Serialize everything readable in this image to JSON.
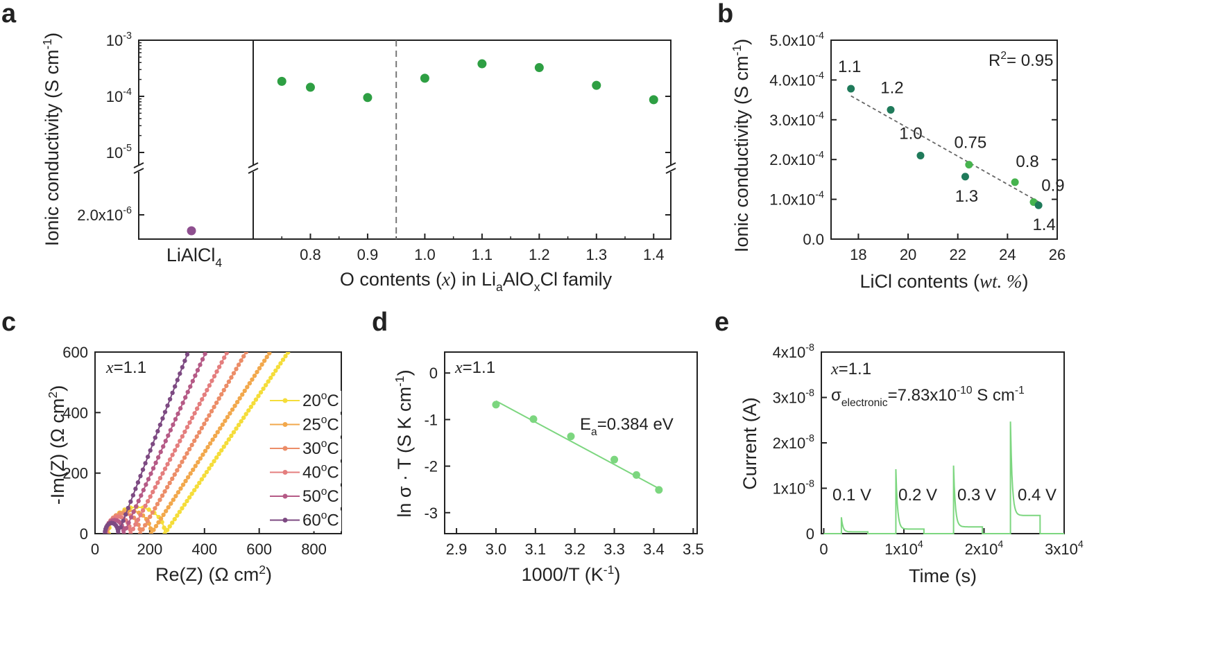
{
  "figure": {
    "panel_labels": [
      "a",
      "b",
      "c",
      "d",
      "e"
    ]
  },
  "chart_data": [
    {
      "panel": "a",
      "type": "scatter",
      "ylabel": "Ionic conductivity (S cm-1)",
      "ylabel_parts": [
        "Ionic conductivity (S cm",
        "-1",
        ")"
      ],
      "xlabel_parts": [
        "O contents (",
        "x",
        ") in Li",
        "a",
        "AlO",
        "x",
        "Cl family"
      ],
      "yscale": "log with axis break",
      "ytick_labels": [
        [
          "10",
          "-3"
        ],
        [
          "10",
          "-4"
        ],
        [
          "10",
          "-5"
        ],
        [
          "2.0x10",
          "-6"
        ]
      ],
      "xtick_labels": [
        "0.8",
        "0.9",
        "1.0",
        "1.1",
        "1.2",
        "1.3",
        "1.4"
      ],
      "reference_label": [
        "LiAlCl",
        "4"
      ],
      "reference_point": {
        "y": 1.2e-06,
        "color": "#8e4f8f"
      },
      "x": [
        0.75,
        0.8,
        0.9,
        1.0,
        1.1,
        1.2,
        1.3,
        1.4
      ],
      "y": [
        0.000185,
        0.000145,
        9.5e-05,
        0.00021,
        0.00038,
        0.000325,
        0.000157,
        8.7e-05
      ],
      "xlim": [
        0.7,
        1.43
      ],
      "ylim": [
        1e-05,
        0.001
      ],
      "dashed_line_x": 0.95,
      "color": "#2e9f43"
    },
    {
      "panel": "b",
      "type": "scatter",
      "xlabel_parts": [
        "LiCl contents (",
        "wt. %",
        ")"
      ],
      "ylabel_parts": [
        "Ionic conductivity (S cm",
        "-1",
        ")"
      ],
      "ytick_labels": [
        [
          "0.0",
          ""
        ],
        [
          "1.0x10",
          "-4"
        ],
        [
          "2.0x10",
          "-4"
        ],
        [
          "3.0x10",
          "-4"
        ],
        [
          "4.0x10",
          "-4"
        ],
        [
          "5.0x10",
          "-4"
        ]
      ],
      "ytick_values": [
        0,
        0.0001,
        0.0002,
        0.0003,
        0.0004,
        0.0005
      ],
      "xtick_labels": [
        "18",
        "20",
        "22",
        "24",
        "26"
      ],
      "xtick_values": [
        18,
        20,
        22,
        24,
        26
      ],
      "xlim": [
        16.9,
        26
      ],
      "ylim": [
        0,
        0.0005
      ],
      "annotation_parts": [
        "R",
        "2",
        "= 0.95"
      ],
      "points": [
        {
          "x": 17.7,
          "y": 0.000378,
          "label": "1.1",
          "color": "#1f7a5a"
        },
        {
          "x": 19.3,
          "y": 0.000325,
          "label": "1.2",
          "color": "#1f7a5a"
        },
        {
          "x": 20.5,
          "y": 0.00021,
          "label": "1.0",
          "color": "#1f7a5a"
        },
        {
          "x": 22.3,
          "y": 0.000157,
          "label": "1.3",
          "color": "#1f7a5a"
        },
        {
          "x": 22.45,
          "y": 0.000187,
          "label": "0.75",
          "color": "#46b34e"
        },
        {
          "x": 24.3,
          "y": 0.000143,
          "label": "0.8",
          "color": "#46b34e"
        },
        {
          "x": 25.05,
          "y": 9.3e-05,
          "label": "0.9",
          "color": "#46b34e"
        },
        {
          "x": 25.25,
          "y": 8.5e-05,
          "label": "1.4",
          "color": "#1f7a5a"
        }
      ],
      "fit_line": {
        "x": [
          17.7,
          25.3
        ],
        "y": [
          0.00036,
          9.2e-05
        ]
      }
    },
    {
      "panel": "c",
      "type": "line",
      "xlabel_parts": [
        "Re(Z) (Ω cm",
        "2",
        ")"
      ],
      "ylabel_parts": [
        "-Im(Z) (Ω cm",
        "2",
        ")"
      ],
      "annotation_parts": [
        "x",
        "=1.1"
      ],
      "xtick_labels": [
        "0",
        "200",
        "400",
        "600",
        "800"
      ],
      "xtick_values": [
        0,
        200,
        400,
        600,
        800
      ],
      "ytick_labels": [
        "0",
        "200",
        "400",
        "600"
      ],
      "ytick_values": [
        0,
        200,
        400,
        600
      ],
      "xlim": [
        0,
        900
      ],
      "ylim": [
        0,
        600
      ],
      "series": [
        {
          "name": "20°C",
          "name_parts": [
            "20",
            "o",
            "C"
          ],
          "color": "#f5dd3a",
          "r0": 50,
          "arc_end": 255,
          "arc_height": 55,
          "slope": 1.33
        },
        {
          "name": "25°C",
          "name_parts": [
            "25",
            "o",
            "C"
          ],
          "color": "#f2a84c",
          "r0": 46,
          "arc_end": 205,
          "arc_height": 48,
          "slope": 1.38
        },
        {
          "name": "30°C",
          "name_parts": [
            "30",
            "o",
            "C"
          ],
          "color": "#ec8d68",
          "r0": 43,
          "arc_end": 165,
          "arc_height": 42,
          "slope": 1.55
        },
        {
          "name": "40°C",
          "name_parts": [
            "40",
            "o",
            "C"
          ],
          "color": "#e47e7e",
          "r0": 40,
          "arc_end": 130,
          "arc_height": 35,
          "slope": 1.7
        },
        {
          "name": "50°C",
          "name_parts": [
            "50",
            "o",
            "C"
          ],
          "color": "#b55a86",
          "r0": 38,
          "arc_end": 105,
          "arc_height": 28,
          "slope": 2.0
        },
        {
          "name": "60°C",
          "name_parts": [
            "60",
            "o",
            "C"
          ],
          "color": "#7d4a82",
          "r0": 36,
          "arc_end": 85,
          "arc_height": 22,
          "slope": 2.35
        }
      ]
    },
    {
      "panel": "d",
      "type": "scatter",
      "xlabel_parts": [
        "1000/T (K",
        "-1",
        ")"
      ],
      "ylabel_parts": [
        "ln σ · T (S K cm",
        "-1",
        ")"
      ],
      "annotation_parts": [
        "x",
        "=1.1"
      ],
      "ea_parts": [
        "E",
        "a",
        "=0.384 eV"
      ],
      "xtick_labels": [
        "2.9",
        "3.0",
        "3.1",
        "3.2",
        "3.3",
        "3.4",
        "3.5"
      ],
      "xtick_values": [
        2.9,
        3.0,
        3.1,
        3.2,
        3.3,
        3.4,
        3.5
      ],
      "ytick_labels": [
        "0",
        "-1",
        "-2",
        "-3"
      ],
      "ytick_values": [
        0,
        -1,
        -2,
        -3
      ],
      "xlim": [
        2.87,
        3.51
      ],
      "ylim": [
        -3.45,
        0.45
      ],
      "x": [
        3.0,
        3.095,
        3.19,
        3.3,
        3.356,
        3.413
      ],
      "y": [
        -0.68,
        -0.99,
        -1.36,
        -1.86,
        -2.19,
        -2.51
      ],
      "fit_line": {
        "x": [
          3.0,
          3.413
        ],
        "y": [
          -0.6,
          -2.48
        ]
      },
      "color": "#7cd67f"
    },
    {
      "panel": "e",
      "type": "line",
      "xlabel": "Time (s)",
      "ylabel": "Current (A)",
      "annotation_parts": [
        "x",
        "=1.1"
      ],
      "sigma_parts": [
        "σ",
        "electronic",
        "=7.83x10",
        "-10",
        " S cm",
        "-1"
      ],
      "xtick_labels": [
        [
          "0",
          ""
        ],
        [
          "1x10",
          "4"
        ],
        [
          "2x10",
          "4"
        ],
        [
          "3x10",
          "4"
        ]
      ],
      "xtick_values": [
        0,
        10000,
        20000,
        30000
      ],
      "ytick_labels": [
        [
          "0",
          ""
        ],
        [
          "1x10",
          "-8"
        ],
        [
          "2x10",
          "-8"
        ],
        [
          "3x10",
          "-8"
        ],
        [
          "4x10",
          "-8"
        ]
      ],
      "ytick_values": [
        0,
        1e-08,
        2e-08,
        3e-08,
        4e-08
      ],
      "xlim": [
        -300,
        30000
      ],
      "ylim": [
        0,
        4e-08
      ],
      "color": "#7cd67f",
      "pulses": [
        {
          "label": "0.1 V",
          "t_on": 2200,
          "t_off": 5500,
          "peak": 3.6e-09,
          "plateau": 4e-10
        },
        {
          "label": "0.2 V",
          "t_on": 9000,
          "t_off": 12500,
          "peak": 1.42e-08,
          "plateau": 1e-09
        },
        {
          "label": "0.3 V",
          "t_on": 16200,
          "t_off": 19800,
          "peak": 1.5e-08,
          "plateau": 1.5e-09
        },
        {
          "label": "0.4 V",
          "t_on": 23300,
          "t_off": 27000,
          "peak": 2.47e-08,
          "plateau": 4e-09
        }
      ]
    }
  ]
}
